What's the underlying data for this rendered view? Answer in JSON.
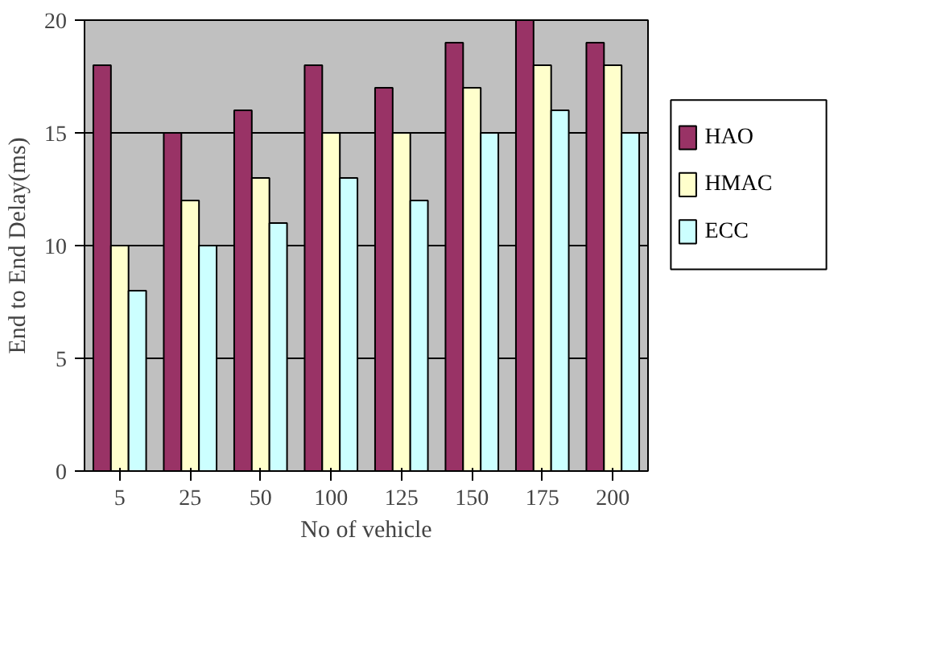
{
  "chart_data": {
    "type": "bar",
    "xlabel": "No of vehicle",
    "ylabel": "End to End Delay(ms)",
    "categories": [
      "5",
      "25",
      "50",
      "100",
      "125",
      "150",
      "175",
      "200"
    ],
    "series": [
      {
        "name": "HAO",
        "color": "#993366",
        "values": [
          18,
          15,
          16,
          18,
          17,
          19,
          20,
          19
        ]
      },
      {
        "name": "HMAC",
        "color": "#ffffcc",
        "values": [
          10,
          12,
          13,
          15,
          15,
          17,
          18,
          18
        ]
      },
      {
        "name": "ECC",
        "color": "#ccffff",
        "values": [
          8,
          10,
          11,
          13,
          12,
          15,
          16,
          15
        ]
      }
    ],
    "ylim": [
      0,
      20
    ],
    "yticks": [
      0,
      5,
      10,
      15,
      20
    ],
    "grid": "y",
    "legend": "right"
  }
}
